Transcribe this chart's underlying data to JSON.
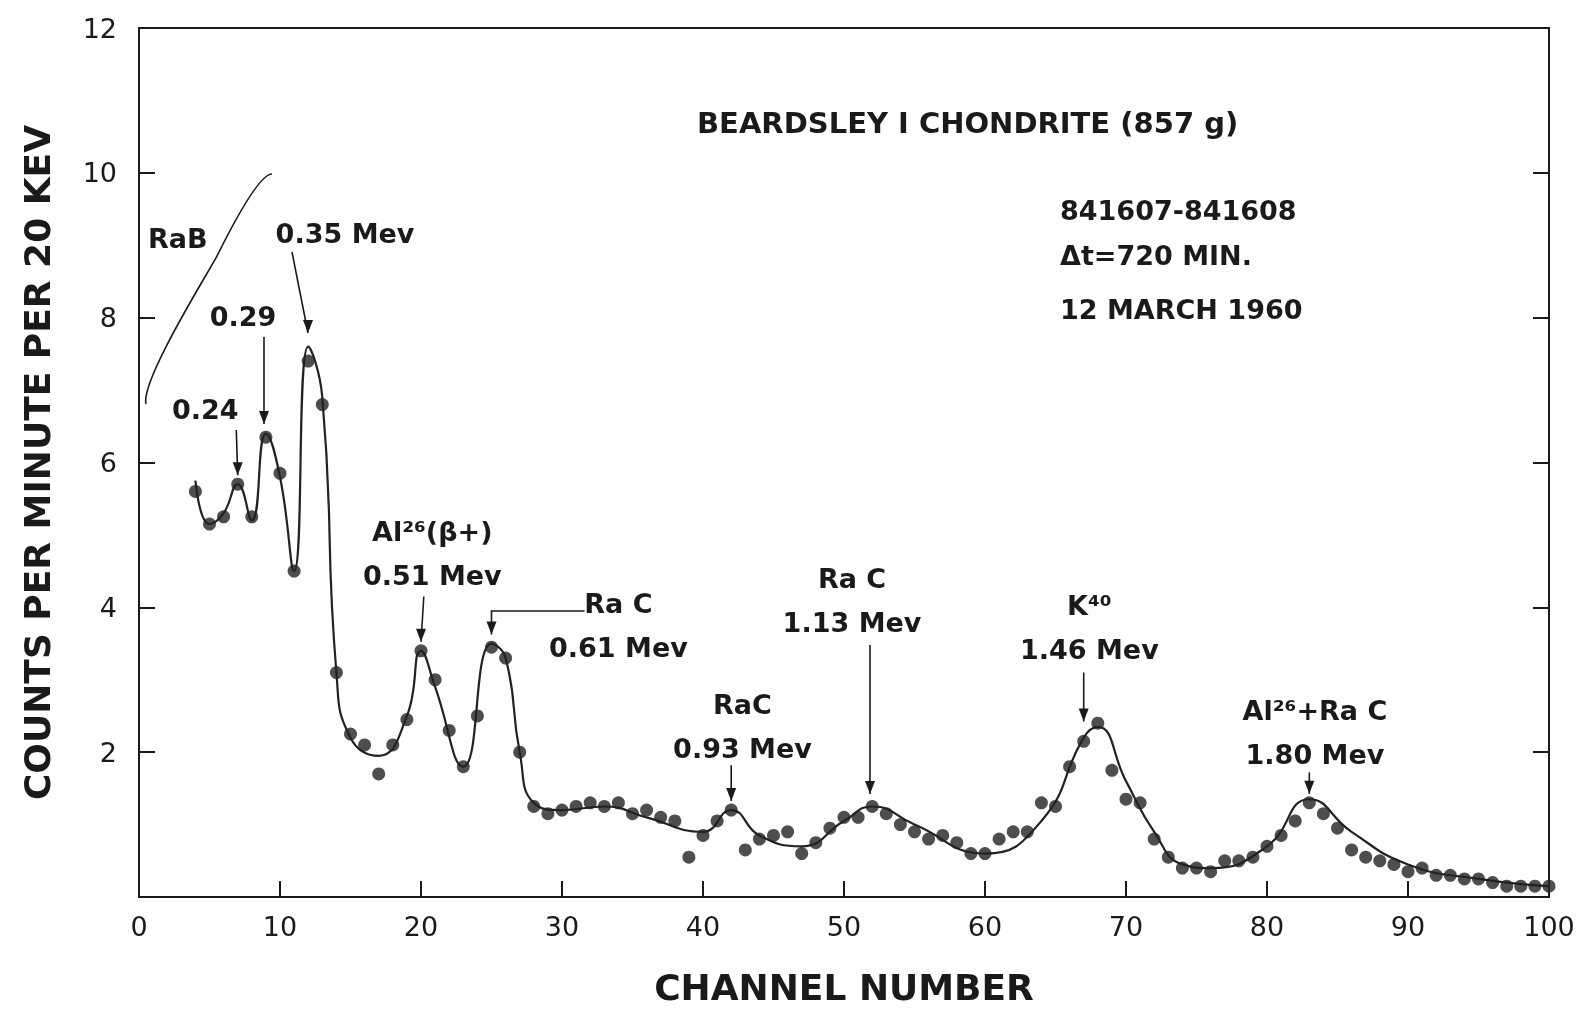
{
  "chart_data": {
    "type": "scatter",
    "title": "BEARDSLEY I CHONDRITE (857 g)",
    "xlabel": "CHANNEL NUMBER",
    "ylabel": "COUNTS PER MINUTE PER 20 KEV",
    "xlim": [
      0,
      100
    ],
    "xticks": [
      0,
      10,
      20,
      30,
      40,
      50,
      60,
      70,
      80,
      90,
      100
    ],
    "ylim": [
      0,
      12
    ],
    "yticks": [
      {
        "value": 0,
        "label": null
      },
      2,
      4,
      6,
      8,
      10,
      12
    ],
    "grid": false,
    "marker": "circle",
    "annotations": [
      "841607-841608",
      "Δt=720 MIN.",
      "12 MARCH 1960",
      "RaB",
      "0.29",
      "0.35 Mev",
      "Ra C\n1.13 Mev",
      {
        "text": "0.24",
        "x": 7,
        "y": 5.7
      },
      {
        "text": "Al²⁶(β+)\n0.51 Mev",
        "x": 20,
        "y": 3.4
      },
      {
        "text": "Ra C\n0.61 Mev",
        "x": 25,
        "y": 3.5
      },
      {
        "text": "RaC\n0.93 Mev",
        "x": 42,
        "y": 1.2
      },
      {
        "text": "K⁴⁰\n1.46 Mev",
        "x": 67,
        "y": 2.3
      },
      {
        "text": "Al²⁶+Ra C\n1.80 Mev",
        "x": 83,
        "y": 1.3
      }
    ],
    "series": [
      {
        "type": "scatter",
        "color": "#222222",
        "x": [
          4,
          5,
          6,
          7,
          8,
          9,
          10,
          11,
          12,
          13,
          14,
          15,
          16,
          17,
          18,
          19,
          20,
          21,
          22,
          23,
          24,
          25,
          26,
          27,
          28,
          29,
          30,
          31,
          32,
          33,
          34,
          35,
          36,
          37,
          38,
          39,
          40,
          41,
          42,
          43,
          44,
          45,
          46,
          47,
          48,
          49,
          50,
          51,
          52,
          53,
          54,
          55,
          56,
          57,
          58,
          59,
          60,
          61,
          62,
          63,
          64,
          65,
          66,
          67,
          68,
          69,
          70,
          71,
          72,
          73,
          74,
          75,
          76,
          77,
          78,
          79,
          80,
          81,
          82,
          83,
          84,
          85,
          86,
          87,
          88,
          89,
          90,
          91,
          92,
          93,
          94,
          95,
          96,
          97,
          98,
          99,
          100
        ],
        "values": [
          5.6,
          5.15,
          5.25,
          5.7,
          5.25,
          6.35,
          5.85,
          4.5,
          7.4,
          6.8,
          3.1,
          2.25,
          2.1,
          1.7,
          2.1,
          2.45,
          3.4,
          3.0,
          2.3,
          1.8,
          2.5,
          3.45,
          3.3,
          2.0,
          1.25,
          1.15,
          1.2,
          1.25,
          1.3,
          1.25,
          1.3,
          1.15,
          1.2,
          1.1,
          1.05,
          0.55,
          0.85,
          1.05,
          1.2,
          0.65,
          0.8,
          0.85,
          0.9,
          0.6,
          0.75,
          0.95,
          1.1,
          1.1,
          1.25,
          1.15,
          1.0,
          0.9,
          0.8,
          0.85,
          0.75,
          0.6,
          0.6,
          0.8,
          0.9,
          0.9,
          1.3,
          1.25,
          1.8,
          2.15,
          2.4,
          1.75,
          1.35,
          1.3,
          0.8,
          0.55,
          0.4,
          0.4,
          0.35,
          0.5,
          0.5,
          0.55,
          0.7,
          0.85,
          1.05,
          1.3,
          1.15,
          0.95,
          0.65,
          0.55,
          0.5,
          0.45,
          0.35,
          0.4,
          0.3,
          0.3,
          0.25,
          0.25,
          0.2,
          0.15,
          0.15,
          0.15,
          0.15
        ]
      },
      {
        "type": "line",
        "color": "#222222",
        "marker": "none",
        "x": [
          4,
          5,
          6,
          7,
          8,
          9,
          10,
          11,
          12,
          13,
          14,
          15,
          17,
          19,
          20,
          21,
          23,
          25,
          26,
          27,
          28,
          30,
          33,
          36,
          40,
          42,
          44,
          47,
          50,
          52,
          55,
          60,
          64,
          67,
          68,
          70,
          72,
          74,
          76,
          80,
          83,
          86,
          90,
          95,
          100
        ],
        "values": [
          5.75,
          5.15,
          5.3,
          5.7,
          5.2,
          6.4,
          5.8,
          4.5,
          7.6,
          6.9,
          3.1,
          2.2,
          1.95,
          2.5,
          3.4,
          2.9,
          1.8,
          3.5,
          3.3,
          2.0,
          1.3,
          1.2,
          1.25,
          1.1,
          0.9,
          1.2,
          0.85,
          0.7,
          1.05,
          1.25,
          1.0,
          0.6,
          1.05,
          2.2,
          2.35,
          1.6,
          0.9,
          0.45,
          0.4,
          0.7,
          1.35,
          0.9,
          0.45,
          0.25,
          0.15
        ]
      }
    ]
  }
}
